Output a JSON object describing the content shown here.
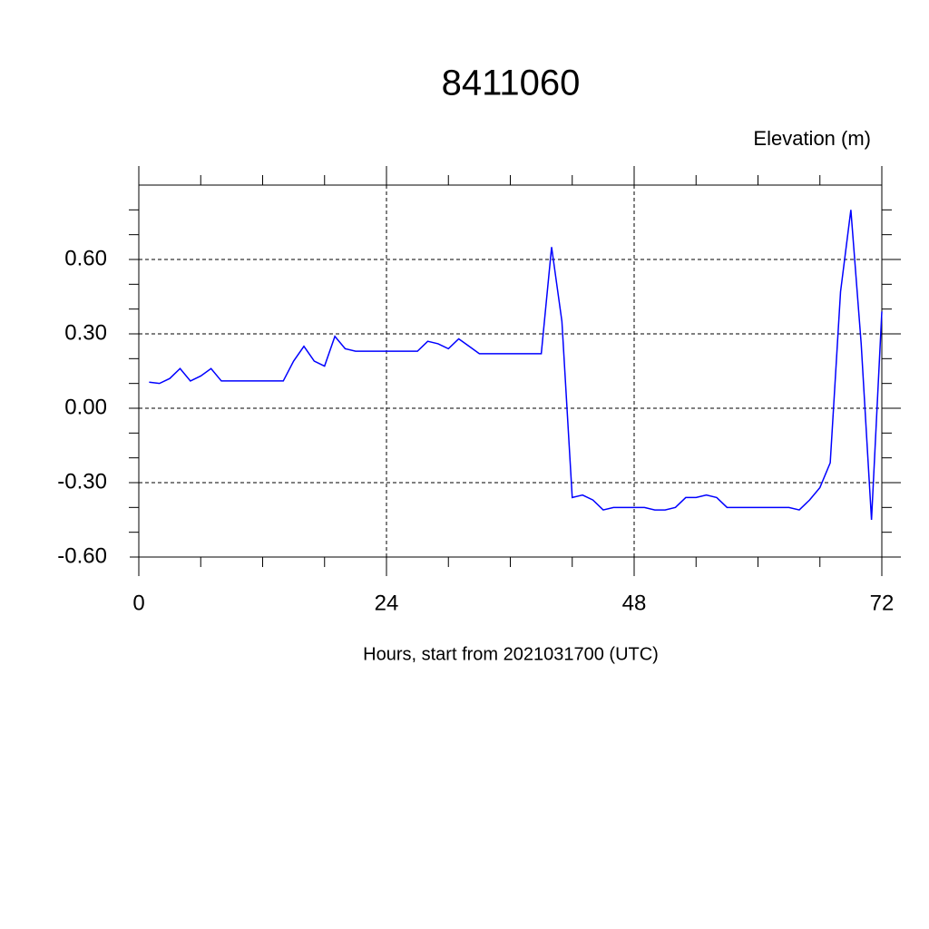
{
  "chart_data": {
    "type": "line",
    "title": "8411060",
    "y_label": "Elevation (m)",
    "x_label": "Hours, start from 2021031700 (UTC)",
    "x": [
      1,
      2,
      3,
      4,
      5,
      6,
      7,
      8,
      9,
      10,
      11,
      12,
      13,
      14,
      15,
      16,
      17,
      18,
      19,
      20,
      21,
      22,
      23,
      24,
      25,
      26,
      27,
      28,
      29,
      30,
      31,
      32,
      33,
      34,
      35,
      36,
      37,
      38,
      39,
      40,
      41,
      42,
      43,
      44,
      45,
      46,
      47,
      48,
      49,
      50,
      51,
      52,
      53,
      54,
      55,
      56,
      57,
      58,
      59,
      60,
      61,
      62,
      63,
      64,
      65,
      66,
      67,
      68,
      69,
      70,
      71,
      72
    ],
    "series": [
      {
        "name": "Elevation",
        "color": "#0000ff",
        "values": [
          0.105,
          0.1,
          0.12,
          0.16,
          0.11,
          0.13,
          0.16,
          0.11,
          0.11,
          0.11,
          0.11,
          0.11,
          0.11,
          0.11,
          0.19,
          0.25,
          0.19,
          0.17,
          0.29,
          0.24,
          0.23,
          0.23,
          0.23,
          0.23,
          0.23,
          0.23,
          0.23,
          0.27,
          0.26,
          0.24,
          0.28,
          0.25,
          0.22,
          0.22,
          0.22,
          0.22,
          0.22,
          0.22,
          0.22,
          0.65,
          0.35,
          -0.36,
          -0.35,
          -0.37,
          -0.41,
          -0.4,
          -0.4,
          -0.4,
          -0.4,
          -0.41,
          -0.41,
          -0.4,
          -0.36,
          -0.36,
          -0.35,
          -0.36,
          -0.4,
          -0.4,
          -0.4,
          -0.4,
          -0.4,
          -0.4,
          -0.4,
          -0.41,
          -0.37,
          -0.32,
          -0.22,
          0.47,
          0.8,
          0.26,
          -0.45,
          0.39
        ]
      }
    ],
    "xlim": [
      0,
      72
    ],
    "xticks": [
      0,
      24,
      48,
      72
    ],
    "ylim": [
      -0.6,
      0.9
    ],
    "yticks": [
      {
        "value": -0.6,
        "label": "-0.60"
      },
      {
        "value": -0.3,
        "label": "-0.30"
      },
      {
        "value": 0,
        "label": "0.00"
      },
      {
        "value": 0.3,
        "label": "0.30"
      },
      {
        "value": 0.6,
        "label": "0.60"
      }
    ],
    "grid": true
  }
}
